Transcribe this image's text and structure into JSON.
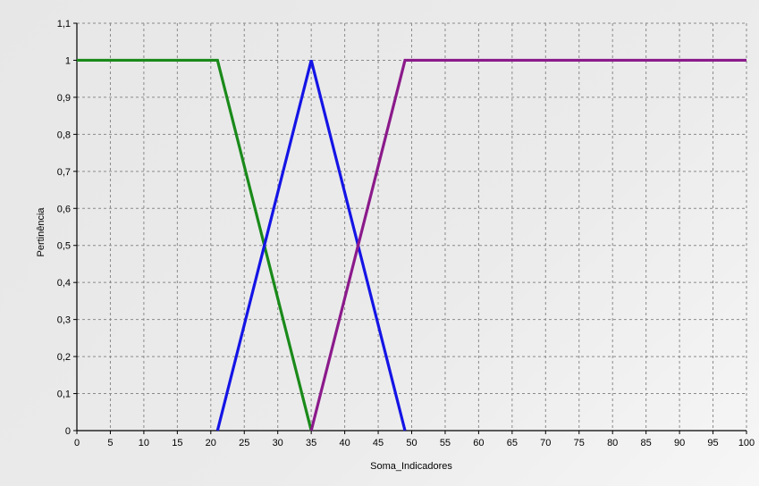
{
  "chart_data": {
    "type": "line",
    "title": "",
    "xlabel": "Soma_Indicadores",
    "ylabel": "Pertinência",
    "xlim": [
      0,
      100
    ],
    "ylim": [
      0,
      1.1
    ],
    "grid": true,
    "x_ticks": [
      "0",
      "5",
      "10",
      "15",
      "20",
      "25",
      "30",
      "35",
      "40",
      "45",
      "50",
      "55",
      "60",
      "65",
      "70",
      "75",
      "80",
      "85",
      "90",
      "95",
      "100"
    ],
    "y_ticks": [
      "0",
      "0,1",
      "0,2",
      "0,3",
      "0,4",
      "0,5",
      "0,6",
      "0,7",
      "0,8",
      "0,9",
      "1",
      "1,1"
    ],
    "series": [
      {
        "color": "#1a8a1a",
        "x": [
          0,
          21,
          35
        ],
        "y": [
          1,
          1,
          0
        ]
      },
      {
        "color": "#1414e6",
        "x": [
          21,
          35,
          49
        ],
        "y": [
          0,
          1,
          0
        ]
      },
      {
        "color": "#8b1a8b",
        "x": [
          35,
          49,
          100
        ],
        "y": [
          0,
          1,
          1
        ]
      }
    ]
  }
}
